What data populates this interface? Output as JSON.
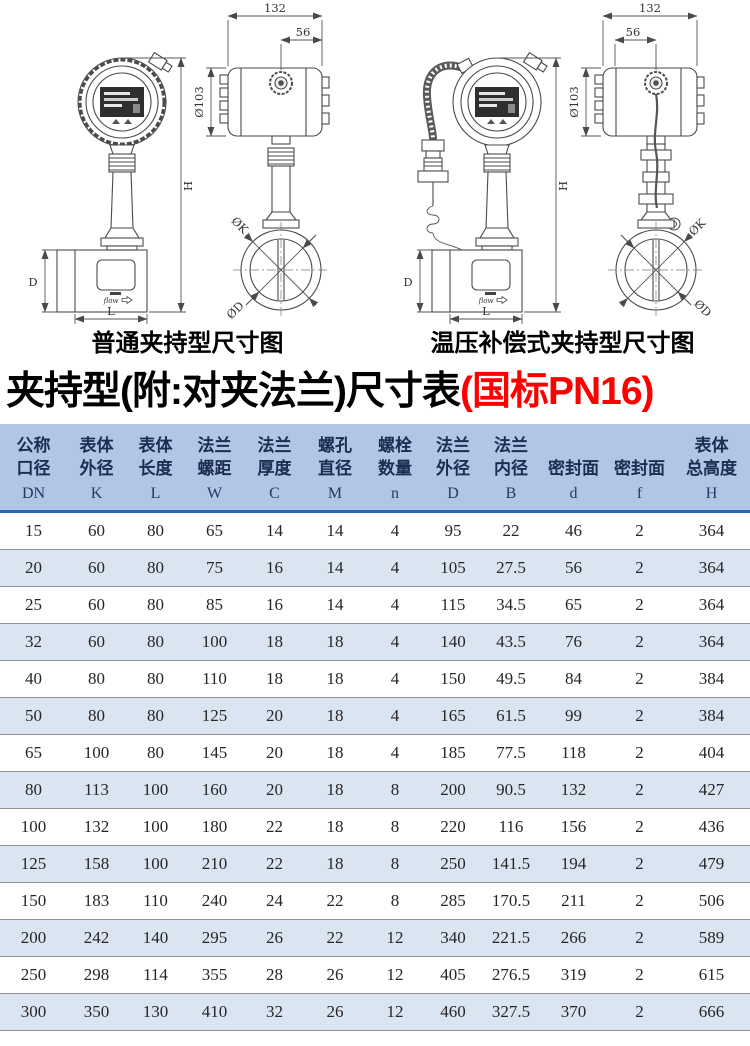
{
  "drawings": {
    "left": {
      "caption": "普通夹持型尺寸图",
      "dim_132": "132",
      "dim_56": "56",
      "dim_103": "Ø103",
      "dim_h": "H",
      "dim_d": "D",
      "dim_l": "L",
      "dim_k": "ØK",
      "dim_dn": "ØD",
      "flow": "flow"
    },
    "right": {
      "caption": "温压补偿式夹持型尺寸图",
      "dim_132": "132",
      "dim_56": "56",
      "dim_103": "Ø103",
      "dim_h": "H",
      "dim_d": "D",
      "dim_l": "L",
      "dim_k": "ØK",
      "dim_dn": "ØD",
      "flow": "flow"
    }
  },
  "title": {
    "black": "夹持型(附:对夹法兰)尺寸表",
    "red": "(国标PN16)",
    "red_color": "#fe0000"
  },
  "table": {
    "colors": {
      "header_bg": "#b1c6e5",
      "stripe_bg": "#dbe5f2",
      "rule_blue": "#2b65b5",
      "grid": "#8d939d",
      "header_text": "#1c2c52",
      "cell_text": "#262626"
    },
    "header": [
      {
        "cn": [
          "公称",
          "口径"
        ],
        "sym": "DN"
      },
      {
        "cn": [
          "表体",
          "外径"
        ],
        "sym": "K"
      },
      {
        "cn": [
          "表体",
          "长度"
        ],
        "sym": "L"
      },
      {
        "cn": [
          "法兰",
          "螺距"
        ],
        "sym": "W"
      },
      {
        "cn": [
          "法兰",
          "厚度"
        ],
        "sym": "C"
      },
      {
        "cn": [
          "螺孔",
          "直径"
        ],
        "sym": "M"
      },
      {
        "cn": [
          "螺栓",
          "数量"
        ],
        "sym": "n"
      },
      {
        "cn": [
          "法兰",
          "外径"
        ],
        "sym": "D"
      },
      {
        "cn": [
          "法兰",
          "内径"
        ],
        "sym": "B"
      },
      {
        "cn": [
          "密封面"
        ],
        "sym": "d"
      },
      {
        "cn": [
          "密封面"
        ],
        "sym": "f"
      },
      {
        "cn": [
          "表体",
          "总高度"
        ],
        "sym": "H"
      }
    ],
    "rows": [
      [
        "15",
        "60",
        "80",
        "65",
        "14",
        "14",
        "4",
        "95",
        "22",
        "46",
        "2",
        "364"
      ],
      [
        "20",
        "60",
        "80",
        "75",
        "16",
        "14",
        "4",
        "105",
        "27.5",
        "56",
        "2",
        "364"
      ],
      [
        "25",
        "60",
        "80",
        "85",
        "16",
        "14",
        "4",
        "115",
        "34.5",
        "65",
        "2",
        "364"
      ],
      [
        "32",
        "60",
        "80",
        "100",
        "18",
        "18",
        "4",
        "140",
        "43.5",
        "76",
        "2",
        "364"
      ],
      [
        "40",
        "80",
        "80",
        "110",
        "18",
        "18",
        "4",
        "150",
        "49.5",
        "84",
        "2",
        "384"
      ],
      [
        "50",
        "80",
        "80",
        "125",
        "20",
        "18",
        "4",
        "165",
        "61.5",
        "99",
        "2",
        "384"
      ],
      [
        "65",
        "100",
        "80",
        "145",
        "20",
        "18",
        "4",
        "185",
        "77.5",
        "118",
        "2",
        "404"
      ],
      [
        "80",
        "113",
        "100",
        "160",
        "20",
        "18",
        "8",
        "200",
        "90.5",
        "132",
        "2",
        "427"
      ],
      [
        "100",
        "132",
        "100",
        "180",
        "22",
        "18",
        "8",
        "220",
        "116",
        "156",
        "2",
        "436"
      ],
      [
        "125",
        "158",
        "100",
        "210",
        "22",
        "18",
        "8",
        "250",
        "141.5",
        "194",
        "2",
        "479"
      ],
      [
        "150",
        "183",
        "110",
        "240",
        "24",
        "22",
        "8",
        "285",
        "170.5",
        "211",
        "2",
        "506"
      ],
      [
        "200",
        "242",
        "140",
        "295",
        "26",
        "22",
        "12",
        "340",
        "221.5",
        "266",
        "2",
        "589"
      ],
      [
        "250",
        "298",
        "114",
        "355",
        "28",
        "26",
        "12",
        "405",
        "276.5",
        "319",
        "2",
        "615"
      ],
      [
        "300",
        "350",
        "130",
        "410",
        "32",
        "26",
        "12",
        "460",
        "327.5",
        "370",
        "2",
        "666"
      ]
    ]
  }
}
